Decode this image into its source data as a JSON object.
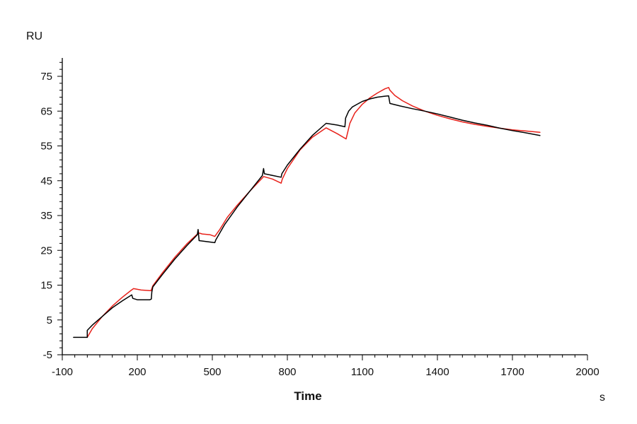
{
  "chart_data": {
    "type": "line",
    "ylabel": "RU",
    "xlabel": "Time",
    "xunit": "s",
    "xlim": [
      -100,
      2000
    ],
    "ylim": [
      -5,
      80
    ],
    "x_ticks": [
      -100,
      200,
      500,
      800,
      1100,
      1400,
      1700,
      2000
    ],
    "y_ticks": [
      -5,
      5,
      15,
      25,
      35,
      45,
      55,
      65,
      75
    ],
    "grid": false,
    "legend": "none",
    "series": [
      {
        "color": "#000000",
        "points": [
          [
            -55,
            0
          ],
          [
            0,
            0
          ],
          [
            0,
            2
          ],
          [
            20,
            3.5
          ],
          [
            60,
            6
          ],
          [
            100,
            8.5
          ],
          [
            140,
            10.5
          ],
          [
            178,
            12.2
          ],
          [
            182,
            11.2
          ],
          [
            200,
            10.8
          ],
          [
            250,
            10.8
          ],
          [
            256,
            11
          ],
          [
            258,
            13
          ],
          [
            262,
            14.5
          ],
          [
            300,
            18
          ],
          [
            350,
            22.5
          ],
          [
            400,
            26.5
          ],
          [
            440,
            29.5
          ],
          [
            443,
            31
          ],
          [
            447,
            27.8
          ],
          [
            510,
            27.2
          ],
          [
            514,
            28
          ],
          [
            550,
            32.5
          ],
          [
            600,
            37.5
          ],
          [
            650,
            42
          ],
          [
            700,
            46.5
          ],
          [
            705,
            48.5
          ],
          [
            708,
            47
          ],
          [
            775,
            46
          ],
          [
            778,
            47
          ],
          [
            800,
            49.5
          ],
          [
            850,
            54
          ],
          [
            900,
            58
          ],
          [
            955,
            61.5
          ],
          [
            1000,
            61
          ],
          [
            1030,
            60.5
          ],
          [
            1033,
            63
          ],
          [
            1045,
            65
          ],
          [
            1060,
            66.2
          ],
          [
            1080,
            67
          ],
          [
            1100,
            67.8
          ],
          [
            1130,
            68.5
          ],
          [
            1160,
            69
          ],
          [
            1190,
            69.3
          ],
          [
            1205,
            69.4
          ],
          [
            1210,
            67.2
          ],
          [
            1250,
            66.5
          ],
          [
            1300,
            65.7
          ],
          [
            1350,
            65
          ],
          [
            1400,
            64.2
          ],
          [
            1450,
            63.3
          ],
          [
            1500,
            62.4
          ],
          [
            1550,
            61.6
          ],
          [
            1600,
            60.9
          ],
          [
            1650,
            60.1
          ],
          [
            1700,
            59.4
          ],
          [
            1750,
            58.8
          ],
          [
            1810,
            58
          ]
        ]
      },
      {
        "color": "#e8211a",
        "points": [
          [
            0,
            0
          ],
          [
            20,
            2.5
          ],
          [
            60,
            6
          ],
          [
            100,
            9
          ],
          [
            140,
            11.5
          ],
          [
            175,
            13.5
          ],
          [
            185,
            14
          ],
          [
            215,
            13.6
          ],
          [
            255,
            13.4
          ],
          [
            262,
            14.8
          ],
          [
            300,
            18.5
          ],
          [
            350,
            23
          ],
          [
            400,
            27
          ],
          [
            445,
            30
          ],
          [
            460,
            29.7
          ],
          [
            490,
            29.5
          ],
          [
            510,
            29
          ],
          [
            530,
            31
          ],
          [
            560,
            34.5
          ],
          [
            600,
            38
          ],
          [
            650,
            42
          ],
          [
            700,
            45.8
          ],
          [
            705,
            46.2
          ],
          [
            740,
            45.5
          ],
          [
            775,
            44.3
          ],
          [
            780,
            45.5
          ],
          [
            800,
            48.5
          ],
          [
            850,
            53.8
          ],
          [
            900,
            57.5
          ],
          [
            955,
            60.2
          ],
          [
            1000,
            58.5
          ],
          [
            1035,
            57
          ],
          [
            1050,
            61.5
          ],
          [
            1070,
            64.5
          ],
          [
            1100,
            67
          ],
          [
            1130,
            68.8
          ],
          [
            1160,
            70.2
          ],
          [
            1190,
            71.4
          ],
          [
            1205,
            71.8
          ],
          [
            1210,
            71
          ],
          [
            1230,
            69.5
          ],
          [
            1260,
            68
          ],
          [
            1300,
            66.5
          ],
          [
            1350,
            65
          ],
          [
            1400,
            63.8
          ],
          [
            1450,
            62.8
          ],
          [
            1500,
            61.9
          ],
          [
            1550,
            61.2
          ],
          [
            1600,
            60.6
          ],
          [
            1650,
            60.1
          ],
          [
            1700,
            59.6
          ],
          [
            1750,
            59.3
          ],
          [
            1810,
            58.9
          ]
        ]
      }
    ]
  }
}
